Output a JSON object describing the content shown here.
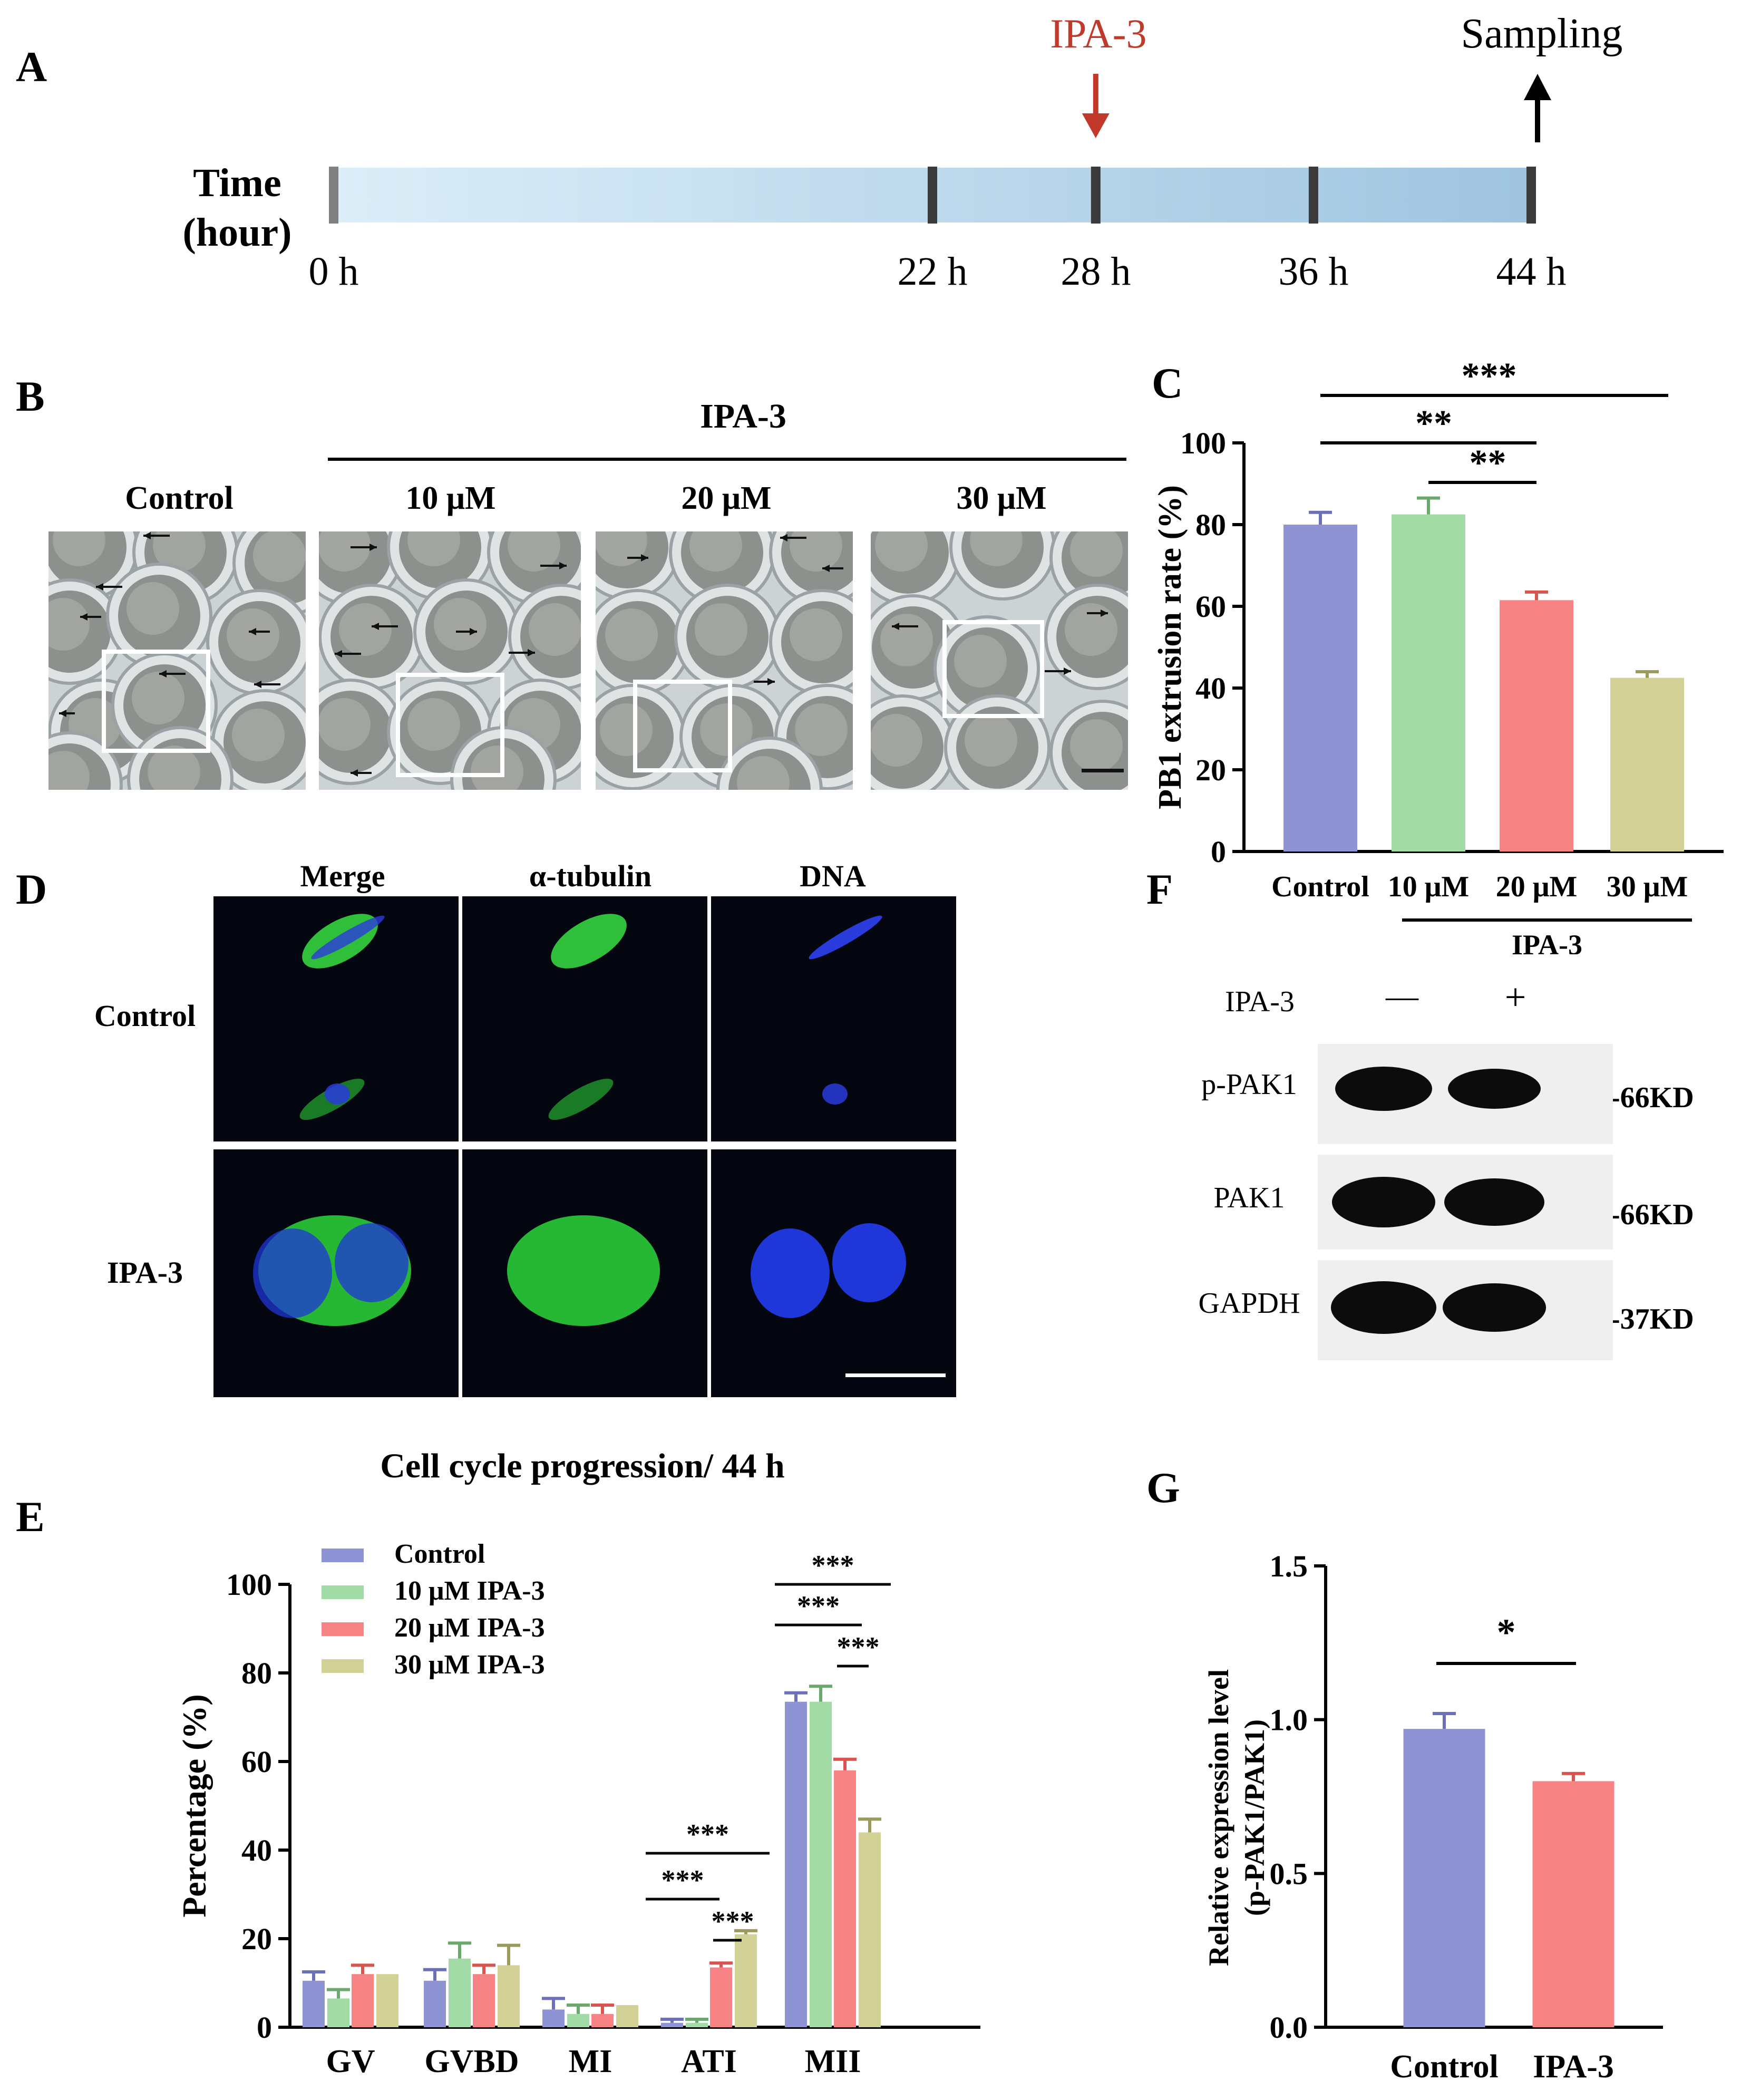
{
  "panels": {
    "A": "A",
    "B": "B",
    "C": "C",
    "D": "D",
    "E": "E",
    "F": "F",
    "G": "G"
  },
  "timeline": {
    "axis_label_line1": "Time",
    "axis_label_line2": "(hour)",
    "ticks": [
      "0 h",
      "22 h",
      "28 h",
      "36 h",
      "44 h"
    ],
    "tick_hours": [
      0,
      22,
      28,
      36,
      44
    ],
    "treatment_label": "IPA-3",
    "treatment_hour": 28,
    "sampling_label": "Sampling",
    "sampling_hour": 44,
    "treatment_color": "#c0392b"
  },
  "panel_b": {
    "group_label": "IPA-3",
    "columns": [
      "Control",
      "10 μM",
      "20 μM",
      "30 μM"
    ]
  },
  "panel_d": {
    "columns": [
      "Merge",
      "α-tubulin",
      "DNA"
    ],
    "rows": [
      "Control",
      "IPA-3"
    ]
  },
  "panel_f": {
    "treatment_label": "IPA-3",
    "lanes": [
      "—",
      "+"
    ],
    "proteins": [
      {
        "name": "p-PAK1",
        "size": "-66KD"
      },
      {
        "name": "PAK1",
        "size": "-66KD"
      },
      {
        "name": "GAPDH",
        "size": "-37KD"
      }
    ]
  },
  "colors": {
    "control": "#8e93d4",
    "ipa10": "#a3dba6",
    "ipa20": "#f88385",
    "ipa30": "#d2d297"
  },
  "chart_data": [
    {
      "id": "C",
      "type": "bar",
      "categories": [
        "Control",
        "10 μM",
        "20 μM",
        "30 μM"
      ],
      "group_label": "IPA-3",
      "values": [
        80,
        82.5,
        61.5,
        42.5
      ],
      "errors": [
        3,
        4,
        2,
        1.5
      ],
      "ylabel": "PB1 extrusion rate (%)",
      "ylim": [
        0,
        100
      ],
      "yticks": [
        0,
        20,
        40,
        60,
        80,
        100
      ],
      "significance": [
        {
          "from": 0,
          "to": 3,
          "label": "***"
        },
        {
          "from": 0,
          "to": 2,
          "label": "**"
        },
        {
          "from": 1,
          "to": 2,
          "label": "**"
        }
      ]
    },
    {
      "id": "E",
      "type": "bar",
      "title": "Cell cycle progression/ 44 h",
      "categories": [
        "GV",
        "GVBD",
        "MI",
        "ATI",
        "MII"
      ],
      "series": [
        {
          "name": "Control",
          "values": [
            10.5,
            10.5,
            4,
            1,
            73.5
          ],
          "errors": [
            2,
            2.5,
            2.5,
            0.8,
            2
          ]
        },
        {
          "name": "10 μM IPA-3",
          "values": [
            6.5,
            15.5,
            3,
            1,
            73.5
          ],
          "errors": [
            2,
            3.5,
            2,
            0.8,
            3.5
          ]
        },
        {
          "name": "20 μM IPA-3",
          "values": [
            12,
            12,
            3,
            13.5,
            58
          ],
          "errors": [
            2,
            2,
            2,
            1,
            2.5
          ]
        },
        {
          "name": "30 μM IPA-3",
          "values": [
            12,
            14,
            5,
            21,
            44
          ],
          "errors": [
            0,
            4.5,
            0,
            0.8,
            3
          ]
        }
      ],
      "ylabel": "Percentage (%)",
      "ylim": [
        0,
        100
      ],
      "yticks": [
        0,
        20,
        40,
        60,
        80,
        100
      ],
      "legend": "top-left",
      "significance": [
        {
          "category": 3,
          "from": 0,
          "to": 3,
          "label": "***"
        },
        {
          "category": 3,
          "from": 0,
          "to": 2,
          "label": "***"
        },
        {
          "category": 3,
          "from": 2,
          "to": 3,
          "label": "***"
        },
        {
          "category": 4,
          "from": 0,
          "to": 3,
          "label": "***"
        },
        {
          "category": 4,
          "from": 0,
          "to": 2,
          "label": "***"
        },
        {
          "category": 4,
          "from": 2,
          "to": 3,
          "label": "***"
        }
      ]
    },
    {
      "id": "G",
      "type": "bar",
      "categories": [
        "Control",
        "IPA-3"
      ],
      "values": [
        0.97,
        0.8
      ],
      "errors": [
        0.05,
        0.025
      ],
      "ylabel_line1": "Relative expression level",
      "ylabel_line2": "(p-PAK1/PAK1)",
      "ylim": [
        0,
        1.5
      ],
      "yticks": [
        "0.0",
        "0.5",
        "1.0",
        "1.5"
      ],
      "ytick_values": [
        0,
        0.5,
        1.0,
        1.5
      ],
      "significance": [
        {
          "from": 0,
          "to": 1,
          "label": "*"
        }
      ]
    }
  ]
}
